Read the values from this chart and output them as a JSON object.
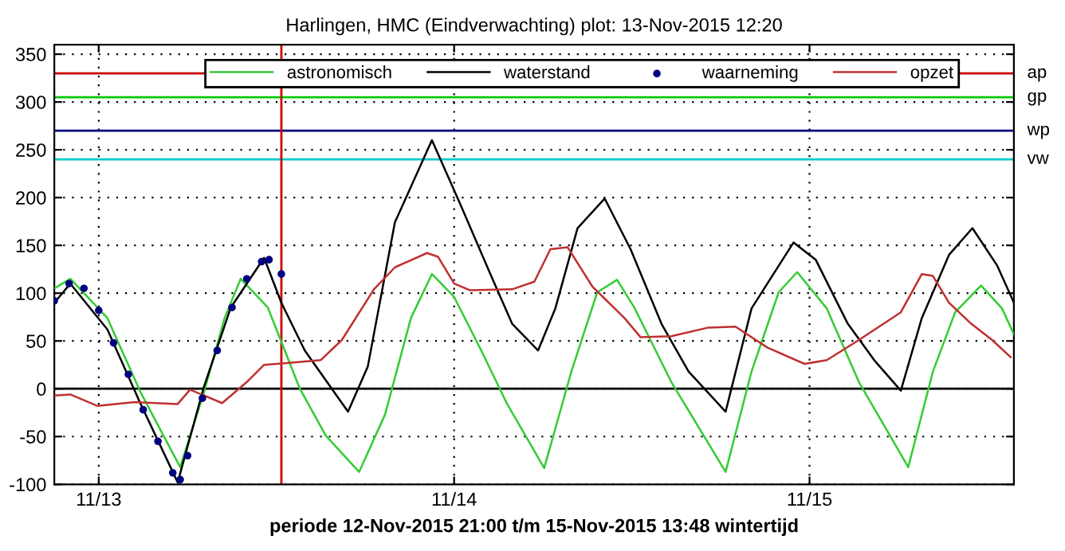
{
  "chart_data": {
    "type": "line",
    "title": "Harlingen, HMC (Eindverwachting) plot: 13-Nov-2015 12:20",
    "xlabel": "periode 12-Nov-2015 21:00 t/m 15-Nov-2015 13:48 wintertijd",
    "xlim": [
      "2015-11-12T21:00",
      "2015-11-15T13:48"
    ],
    "xticks": [
      {
        "value": "2015-11-13T00:00",
        "label": "11/13"
      },
      {
        "value": "2015-11-14T00:00",
        "label": "11/14"
      },
      {
        "value": "2015-11-15T00:00",
        "label": "11/15"
      }
    ],
    "ylim": [
      -100,
      360
    ],
    "yticks": [
      -100,
      -50,
      0,
      50,
      100,
      150,
      200,
      250,
      300,
      350
    ],
    "grid": true,
    "legend": "top",
    "series": [
      {
        "name": "astronomisch",
        "color": "#33cc33",
        "x": [
          "2015-11-12T21:00",
          "2015-11-12T22:05",
          "2015-11-13T00:35",
          "2015-11-13T02:50",
          "2015-11-13T05:30",
          "2015-11-13T07:05",
          "2015-11-13T08:30",
          "2015-11-13T09:35",
          "2015-11-13T11:25",
          "2015-11-13T13:35",
          "2015-11-13T15:20",
          "2015-11-13T17:35",
          "2015-11-13T19:20",
          "2015-11-13T21:05",
          "2015-11-13T22:30",
          "2015-11-14T00:00",
          "2015-11-14T01:50",
          "2015-11-14T03:35",
          "2015-11-14T06:05",
          "2015-11-14T07:55",
          "2015-11-14T09:40",
          "2015-11-14T11:00",
          "2015-11-14T12:10",
          "2015-11-14T14:40",
          "2015-11-14T18:20",
          "2015-11-14T20:05",
          "2015-11-14T21:55",
          "2015-11-14T23:10",
          "2015-11-15T01:10",
          "2015-11-15T03:20",
          "2015-11-15T06:40",
          "2015-11-15T08:20",
          "2015-11-15T09:50",
          "2015-11-15T11:35",
          "2015-11-15T13:00",
          "2015-11-15T13:48"
        ],
        "values": [
          105,
          115,
          74,
          -4,
          -82,
          -5,
          74,
          115,
          85,
          0,
          -49,
          -87,
          -27,
          74,
          120,
          96,
          40,
          -16,
          -83,
          18,
          101,
          114,
          85,
          7,
          -87,
          18,
          101,
          122,
          84,
          7,
          -82,
          18,
          80,
          108,
          84,
          57
        ]
      },
      {
        "name": "waterstand",
        "color": "#000000",
        "x": [
          "2015-11-12T21:00",
          "2015-11-12T22:05",
          "2015-11-13T00:35",
          "2015-11-13T02:50",
          "2015-11-13T05:20",
          "2015-11-13T07:05",
          "2015-11-13T08:55",
          "2015-11-13T11:10",
          "2015-11-13T12:20",
          "2015-11-13T13:55",
          "2015-11-13T16:50",
          "2015-11-13T18:10",
          "2015-11-13T20:00",
          "2015-11-13T22:30",
          "2015-11-14T00:20",
          "2015-11-14T02:30",
          "2015-11-14T03:55",
          "2015-11-14T05:40",
          "2015-11-14T06:50",
          "2015-11-14T08:20",
          "2015-11-14T10:10",
          "2015-11-14T11:55",
          "2015-11-14T14:00",
          "2015-11-14T15:50",
          "2015-11-14T18:20",
          "2015-11-14T20:05",
          "2015-11-14T22:55",
          "2015-11-15T00:25",
          "2015-11-15T02:35",
          "2015-11-15T04:25",
          "2015-11-15T06:10",
          "2015-11-15T07:35",
          "2015-11-15T09:25",
          "2015-11-15T11:00",
          "2015-11-15T12:40",
          "2015-11-15T13:48"
        ],
        "values": [
          90,
          110,
          62,
          -16,
          -98,
          1,
          85,
          137,
          90,
          40,
          -24,
          23,
          174,
          260,
          196,
          118,
          68,
          40,
          84,
          168,
          199,
          146,
          68,
          18,
          -24,
          84,
          153,
          135,
          68,
          29,
          -2,
          74,
          140,
          168,
          129,
          90
        ]
      },
      {
        "name": "waarneming",
        "type": "scatter",
        "marker": "circle",
        "color": "#000080",
        "x": [
          "2015-11-12T21:00",
          "2015-11-12T22:00",
          "2015-11-12T23:00",
          "2015-11-13T00:00",
          "2015-11-13T01:00",
          "2015-11-13T02:00",
          "2015-11-13T03:00",
          "2015-11-13T04:00",
          "2015-11-13T05:00",
          "2015-11-13T05:30",
          "2015-11-13T06:00",
          "2015-11-13T07:00",
          "2015-11-13T08:00",
          "2015-11-13T09:00",
          "2015-11-13T10:00",
          "2015-11-13T11:00",
          "2015-11-13T11:30",
          "2015-11-13T12:20"
        ],
        "values": [
          92,
          110,
          105,
          82,
          48,
          15,
          -22,
          -55,
          -88,
          -95,
          -70,
          -10,
          40,
          85,
          115,
          133,
          135,
          120
        ]
      },
      {
        "name": "opzet",
        "color": "#c03030",
        "x": [
          "2015-11-12T21:00",
          "2015-11-12T22:05",
          "2015-11-12T23:55",
          "2015-11-13T02:25",
          "2015-11-13T05:20",
          "2015-11-13T06:10",
          "2015-11-13T08:20",
          "2015-11-13T10:00",
          "2015-11-13T11:10",
          "2015-11-13T12:50",
          "2015-11-13T15:00",
          "2015-11-13T16:25",
          "2015-11-13T18:35",
          "2015-11-13T20:00",
          "2015-11-13T22:10",
          "2015-11-13T22:55",
          "2015-11-14T00:00",
          "2015-11-14T01:05",
          "2015-11-14T03:55",
          "2015-11-14T05:25",
          "2015-11-14T06:30",
          "2015-11-14T07:40",
          "2015-11-14T09:20",
          "2015-11-14T11:30",
          "2015-11-14T12:35",
          "2015-11-14T14:40",
          "2015-11-14T17:10",
          "2015-11-14T19:00",
          "2015-11-14T21:10",
          "2015-11-14T23:40",
          "2015-11-15T01:10",
          "2015-11-15T03:20",
          "2015-11-15T06:10",
          "2015-11-15T07:35",
          "2015-11-15T08:20",
          "2015-11-15T09:25",
          "2015-11-15T10:55",
          "2015-11-15T12:20",
          "2015-11-15T13:35"
        ],
        "values": [
          -7,
          -6,
          -18,
          -14,
          -16,
          -1,
          -15,
          7,
          25,
          27,
          30,
          51,
          104,
          127,
          142,
          138,
          110,
          103,
          104,
          112,
          146,
          148,
          107,
          74,
          54,
          55,
          64,
          65,
          43,
          26,
          30,
          51,
          80,
          120,
          118,
          90,
          68,
          51,
          33
        ]
      }
    ],
    "ref_lines": [
      {
        "axis": "y",
        "value": 330,
        "label": "ap",
        "color": "#cc0000"
      },
      {
        "axis": "y",
        "value": 305,
        "label": "gp",
        "color": "#00cc00"
      },
      {
        "axis": "y",
        "value": 270,
        "label": "wp",
        "color": "#000080"
      },
      {
        "axis": "y",
        "value": 240,
        "label": "vw",
        "color": "#00cccc"
      },
      {
        "axis": "y",
        "value": 0,
        "color": "#000000"
      },
      {
        "axis": "x",
        "value": "2015-11-13T12:20",
        "color": "#cc0000"
      }
    ]
  }
}
